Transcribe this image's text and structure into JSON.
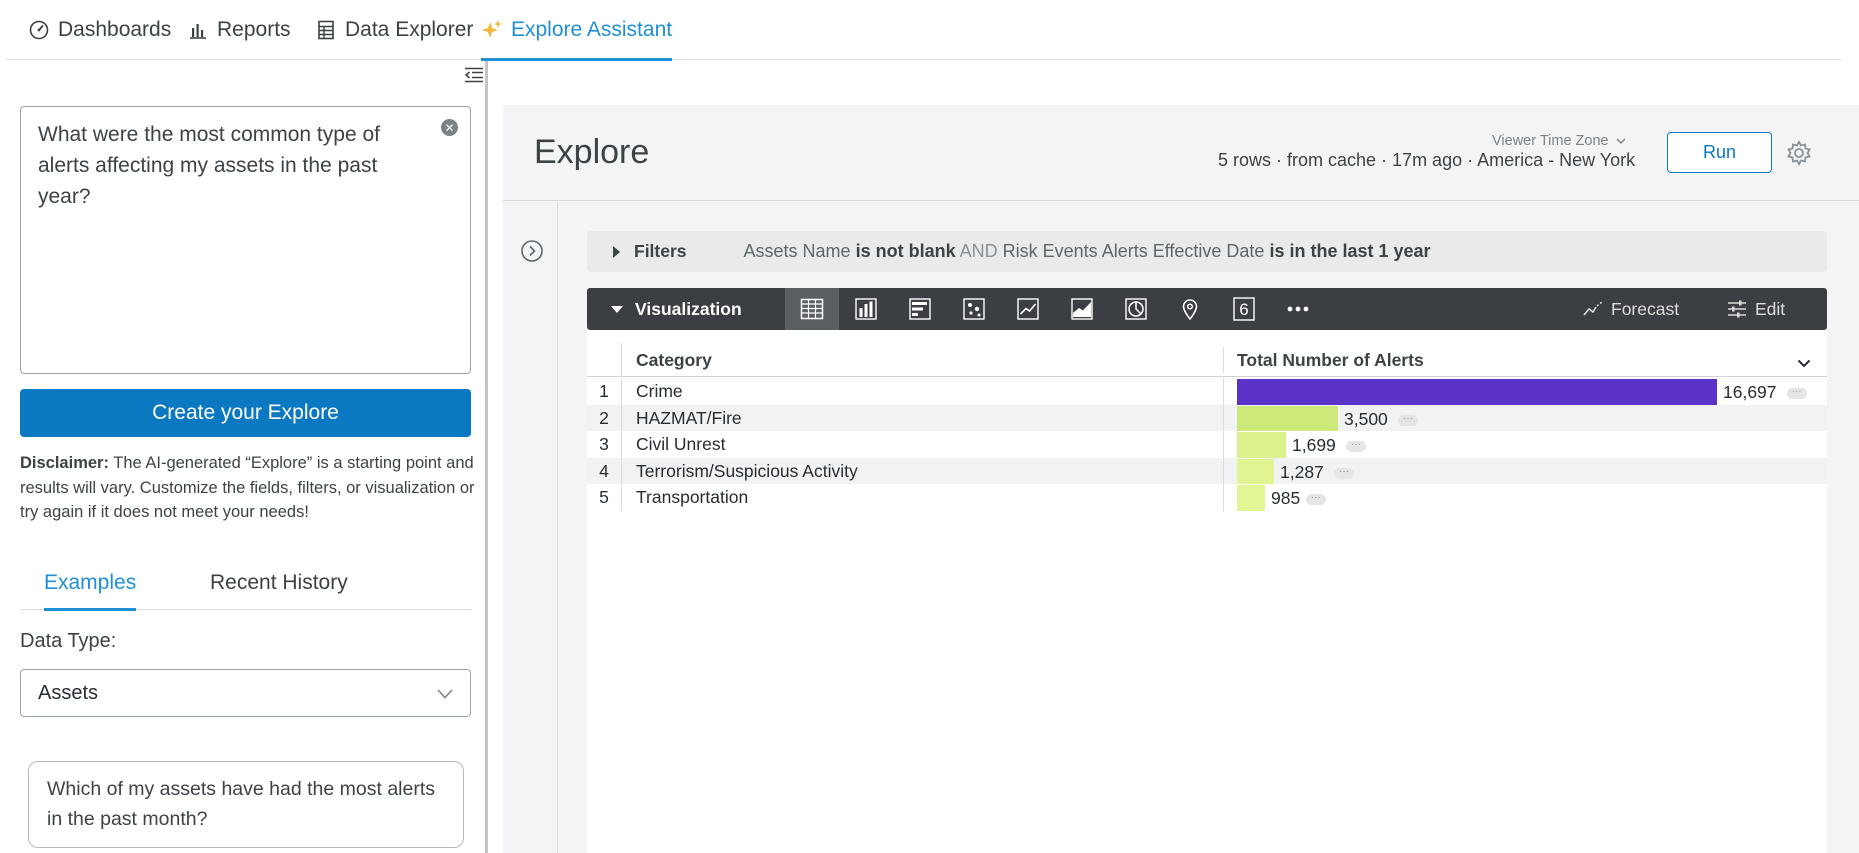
{
  "nav": {
    "tabs": [
      {
        "label": "Dashboards",
        "icon": "gauge-icon"
      },
      {
        "label": "Reports",
        "icon": "bar-chart-icon"
      },
      {
        "label": "Data Explorer",
        "icon": "table-icon"
      },
      {
        "label": "Explore Assistant",
        "icon": "sparkle-icon",
        "active": true
      }
    ]
  },
  "left": {
    "prompt_text": "What were the most common type of alerts affecting my assets in the past year?",
    "create_button": "Create your Explore",
    "disclaimer_label": "Disclaimer:",
    "disclaimer_text": " The AI-generated “Explore” is a starting point and results will vary. Customize the fields, filters, or visualization or try again if it does not meet your needs!",
    "subtabs": {
      "examples": "Examples",
      "history": "Recent History"
    },
    "data_type_label": "Data Type:",
    "data_type_value": "Assets",
    "example_card": "Which of my assets have had the most alerts in the past month?"
  },
  "explore": {
    "title": "Explore",
    "timezone_label": "Viewer Time Zone",
    "meta": "5 rows · from cache · 17m ago · America - New York",
    "run_label": "Run"
  },
  "filters": {
    "label": "Filters",
    "f1_field": "Assets Name",
    "f1_op": "is not blank",
    "joiner": "AND",
    "f2_field": "Risk Events Alerts Effective Date",
    "f2_op": "is in the last 1 year"
  },
  "visualization": {
    "label": "Visualization",
    "icons": [
      "table-icon",
      "column-chart-icon",
      "bar-chart-icon",
      "scatter-icon",
      "line-chart-icon",
      "area-chart-icon",
      "pie-chart-icon",
      "map-pin-icon",
      "single-value-icon",
      "more-icon"
    ],
    "single_value_glyph": "6",
    "forecast_label": "Forecast",
    "edit_label": "Edit"
  },
  "table": {
    "col1": "Category",
    "col2": "Total Number of Alerts",
    "max_value": 16697,
    "rows": [
      {
        "index": "1",
        "category": "Crime",
        "value": 16697,
        "display": "16,697",
        "color": "#5b33c9"
      },
      {
        "index": "2",
        "category": "HAZMAT/Fire",
        "value": 3500,
        "display": "3,500",
        "color": "#cde97a"
      },
      {
        "index": "3",
        "category": "Civil Unrest",
        "value": 1699,
        "display": "1,699",
        "color": "#dcf38c"
      },
      {
        "index": "4",
        "category": "Terrorism/Suspicious Activity",
        "value": 1287,
        "display": "1,287",
        "color": "#e0f592"
      },
      {
        "index": "5",
        "category": "Transportation",
        "value": 985,
        "display": "985",
        "color": "#e2f695"
      }
    ]
  }
}
